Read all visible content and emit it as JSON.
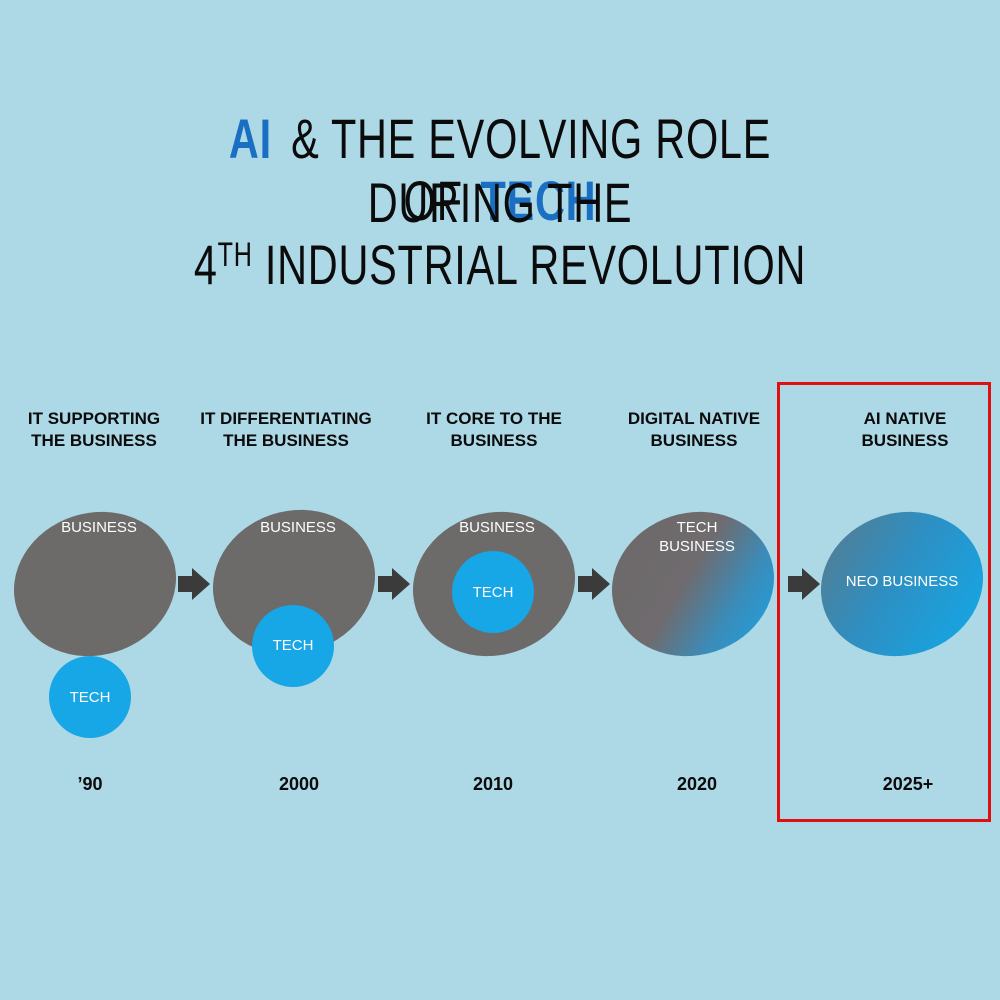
{
  "title": {
    "ai": "AI",
    "middle": "& THE EVOLVING ROLE OF",
    "tech": "TECH",
    "line2": "DURING THE",
    "line3_num": "4",
    "line3_sup": "TH",
    "line3_rest": " INDUSTRIAL REVOLUTION"
  },
  "stages": [
    {
      "label_1": "IT SUPPORTING",
      "label_2": "THE BUSINESS",
      "business": "BUSINESS",
      "tech": "TECH",
      "year": "’90"
    },
    {
      "label_1": "IT DIFFERENTIATING",
      "label_2": "THE BUSINESS",
      "business": "BUSINESS",
      "tech": "TECH",
      "year": "2000"
    },
    {
      "label_1": "IT CORE TO THE",
      "label_2": "BUSINESS",
      "business": "BUSINESS",
      "tech": "TECH",
      "year": "2010"
    },
    {
      "label_1": "DIGITAL NATIVE",
      "label_2": "BUSINESS",
      "merged_1": "TECH",
      "merged_2": "BUSINESS",
      "year": "2020"
    },
    {
      "label_1": "AI NATIVE",
      "label_2": "BUSINESS",
      "neo": "NEO BUSINESS",
      "year": "2025+"
    }
  ],
  "colors": {
    "background": "#add8e6",
    "business_circle": "#6d6a6a",
    "tech_circle": "#17a6e6",
    "title_accent": "#1a6fc2",
    "highlight_box": "#e01010",
    "arrow": "#3b3b3b"
  }
}
